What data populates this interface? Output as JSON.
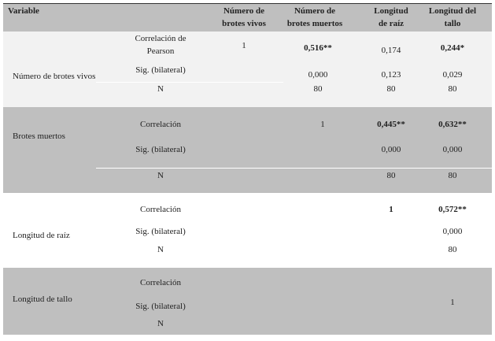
{
  "colors": {
    "header": "#bfbfbf",
    "row_light": "#f2f2f2",
    "row_gray": "#bfbfbf",
    "row_white": "#ffffff",
    "top_border": "#333333"
  },
  "header": {
    "variable": "Variable",
    "col1": [
      "Número de",
      "brotes vivos"
    ],
    "col2": [
      "Número de",
      "brotes muertos"
    ],
    "col3": [
      "Longitud",
      "de raíz"
    ],
    "col4": [
      "Longitud del",
      "tallo"
    ]
  },
  "rows": [
    {
      "variable": "Número de brotes vivos",
      "stat_labels": [
        "Correlación de",
        "Pearson",
        "Sig. (bilateral)",
        "N"
      ],
      "corr": [
        "1",
        "0,516**",
        "0,174",
        "0,244*"
      ],
      "sig": [
        "0,000",
        "0,123",
        "0,029"
      ],
      "n": [
        "80",
        "80",
        "80"
      ]
    },
    {
      "variable": "Brotes muertos",
      "stat_labels": [
        "Correlación",
        "Sig. (bilateral)",
        "N"
      ],
      "corr": [
        "1",
        "0,445**",
        "0,632**"
      ],
      "sig": [
        "0,000",
        "0,000"
      ],
      "n": [
        "80",
        "80"
      ]
    },
    {
      "variable": "Longitud de raíz",
      "stat_labels": [
        "Correlación",
        "Sig. (bilateral)",
        "N"
      ],
      "corr": [
        "1",
        "0,572**"
      ],
      "sig": [
        "0,000"
      ],
      "n": [
        "80"
      ]
    },
    {
      "variable": "Longitud de tallo",
      "stat_labels": [
        "Correlación",
        "Sig. (bilateral)",
        "N"
      ],
      "corr": [
        "1"
      ]
    }
  ]
}
